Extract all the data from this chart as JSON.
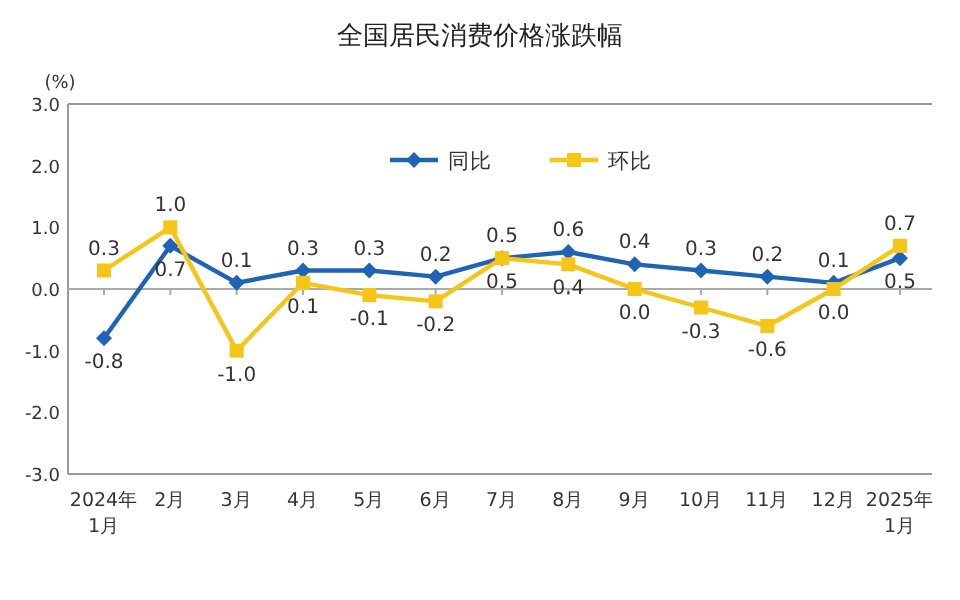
{
  "chart_data": {
    "type": "line",
    "title": "全国居民消费价格涨跌幅",
    "ylabel": "(%)",
    "categories": [
      "2024年\n1月",
      "2月",
      "3月",
      "4月",
      "5月",
      "6月",
      "7月",
      "8月",
      "9月",
      "10月",
      "11月",
      "12月",
      "2025年\n1月"
    ],
    "series": [
      {
        "name": "同比",
        "color": "#1f63b5",
        "marker": "diamond",
        "values": [
          -0.8,
          0.7,
          0.1,
          0.3,
          0.3,
          0.2,
          0.5,
          0.6,
          0.4,
          0.3,
          0.2,
          0.1,
          0.5
        ],
        "value_labels": [
          "-0.8",
          "0.7",
          "0.1",
          "0.3",
          "0.3",
          "0.2",
          "0.5",
          "0.6",
          "0.4",
          "0.3",
          "0.2",
          "0.1",
          "0.5"
        ]
      },
      {
        "name": "环比",
        "color": "#f5c518",
        "marker": "square",
        "values": [
          0.3,
          1.0,
          -1.0,
          0.1,
          -0.1,
          -0.2,
          0.5,
          0.4,
          0.0,
          -0.3,
          -0.6,
          0.0,
          0.7
        ],
        "value_labels": [
          "0.3",
          "1.0",
          "-1.0",
          "0.1",
          "-0.1",
          "-0.2",
          "0.5",
          "0.4",
          "0.0",
          "-0.3",
          "-0.6",
          "0.0",
          "0.7"
        ]
      }
    ],
    "ylim": [
      -3,
      3
    ],
    "yticks": [
      {
        "value": 3,
        "label": "3.0"
      },
      {
        "value": 2,
        "label": "2.0"
      },
      {
        "value": 1,
        "label": "1.0"
      },
      {
        "value": 0,
        "label": "0.0"
      },
      {
        "value": -1,
        "label": "-1.0"
      },
      {
        "value": -2,
        "label": "-2.0"
      },
      {
        "value": -3,
        "label": "-3.0"
      }
    ],
    "legend": "top",
    "ref_lines": [
      {
        "axis": "y",
        "value": 0,
        "color": "#aaaaaa"
      }
    ]
  }
}
